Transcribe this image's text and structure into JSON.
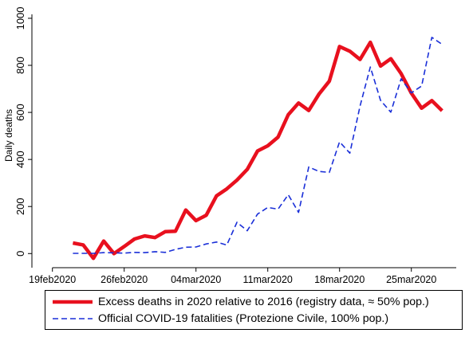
{
  "chart_data": {
    "type": "line",
    "title": "",
    "xlabel": "",
    "ylabel": "Daily deaths",
    "ylim": [
      -60,
      1010
    ],
    "xlim": [
      "2020-02-17",
      "2020-03-30"
    ],
    "grid": false,
    "legend_position": "bottom",
    "y_ticks": [
      0,
      200,
      400,
      600,
      800,
      1000
    ],
    "x_ticks": [
      {
        "date": "2020-02-19",
        "label": "19feb2020"
      },
      {
        "date": "2020-02-26",
        "label": "26feb2020"
      },
      {
        "date": "2020-03-04",
        "label": "04mar2020"
      },
      {
        "date": "2020-03-11",
        "label": "11mar2020"
      },
      {
        "date": "2020-03-18",
        "label": "18mar2020"
      },
      {
        "date": "2020-03-25",
        "label": "25mar2020"
      }
    ],
    "series": [
      {
        "name": "Excess deaths in 2020 relative to 2016 (registry data, ≈ 50% pop.)",
        "color": "#e8101e",
        "style": "solid",
        "points": [
          [
            "2020-02-21",
            45
          ],
          [
            "2020-02-22",
            37
          ],
          [
            "2020-02-23",
            -20
          ],
          [
            "2020-02-24",
            53
          ],
          [
            "2020-02-25",
            0
          ],
          [
            "2020-02-26",
            30
          ],
          [
            "2020-02-27",
            62
          ],
          [
            "2020-02-28",
            75
          ],
          [
            "2020-02-29",
            68
          ],
          [
            "2020-03-01",
            93
          ],
          [
            "2020-03-02",
            95
          ],
          [
            "2020-03-03",
            185
          ],
          [
            "2020-03-04",
            140
          ],
          [
            "2020-03-05",
            163
          ],
          [
            "2020-03-06",
            245
          ],
          [
            "2020-03-07",
            275
          ],
          [
            "2020-03-08",
            312
          ],
          [
            "2020-03-09",
            358
          ],
          [
            "2020-03-10",
            436
          ],
          [
            "2020-03-11",
            458
          ],
          [
            "2020-03-12",
            495
          ],
          [
            "2020-03-13",
            590
          ],
          [
            "2020-03-14",
            640
          ],
          [
            "2020-03-15",
            608
          ],
          [
            "2020-03-16",
            678
          ],
          [
            "2020-03-17",
            733
          ],
          [
            "2020-03-18",
            880
          ],
          [
            "2020-03-19",
            860
          ],
          [
            "2020-03-20",
            825
          ],
          [
            "2020-03-21",
            898
          ],
          [
            "2020-03-22",
            797
          ],
          [
            "2020-03-23",
            828
          ],
          [
            "2020-03-24",
            765
          ],
          [
            "2020-03-25",
            682
          ],
          [
            "2020-03-26",
            618
          ],
          [
            "2020-03-27",
            650
          ],
          [
            "2020-03-28",
            607
          ]
        ]
      },
      {
        "name": "Official COVID-19 fatalities (Protezione Civile, 100% pop.)",
        "color": "#1a2fd8",
        "style": "dashed",
        "points": [
          [
            "2020-02-21",
            1
          ],
          [
            "2020-02-22",
            1
          ],
          [
            "2020-02-23",
            1
          ],
          [
            "2020-02-24",
            4
          ],
          [
            "2020-02-25",
            3
          ],
          [
            "2020-02-26",
            2
          ],
          [
            "2020-02-27",
            5
          ],
          [
            "2020-02-28",
            4
          ],
          [
            "2020-02-29",
            8
          ],
          [
            "2020-03-01",
            5
          ],
          [
            "2020-03-02",
            18
          ],
          [
            "2020-03-03",
            27
          ],
          [
            "2020-03-04",
            28
          ],
          [
            "2020-03-05",
            41
          ],
          [
            "2020-03-06",
            49
          ],
          [
            "2020-03-07",
            36
          ],
          [
            "2020-03-08",
            133
          ],
          [
            "2020-03-09",
            97
          ],
          [
            "2020-03-10",
            168
          ],
          [
            "2020-03-11",
            196
          ],
          [
            "2020-03-12",
            189
          ],
          [
            "2020-03-13",
            250
          ],
          [
            "2020-03-14",
            175
          ],
          [
            "2020-03-15",
            368
          ],
          [
            "2020-03-16",
            349
          ],
          [
            "2020-03-17",
            345
          ],
          [
            "2020-03-18",
            475
          ],
          [
            "2020-03-19",
            427
          ],
          [
            "2020-03-20",
            627
          ],
          [
            "2020-03-21",
            793
          ],
          [
            "2020-03-22",
            651
          ],
          [
            "2020-03-23",
            601
          ],
          [
            "2020-03-24",
            743
          ],
          [
            "2020-03-25",
            683
          ],
          [
            "2020-03-26",
            712
          ],
          [
            "2020-03-27",
            919
          ],
          [
            "2020-03-28",
            889
          ]
        ]
      }
    ]
  }
}
